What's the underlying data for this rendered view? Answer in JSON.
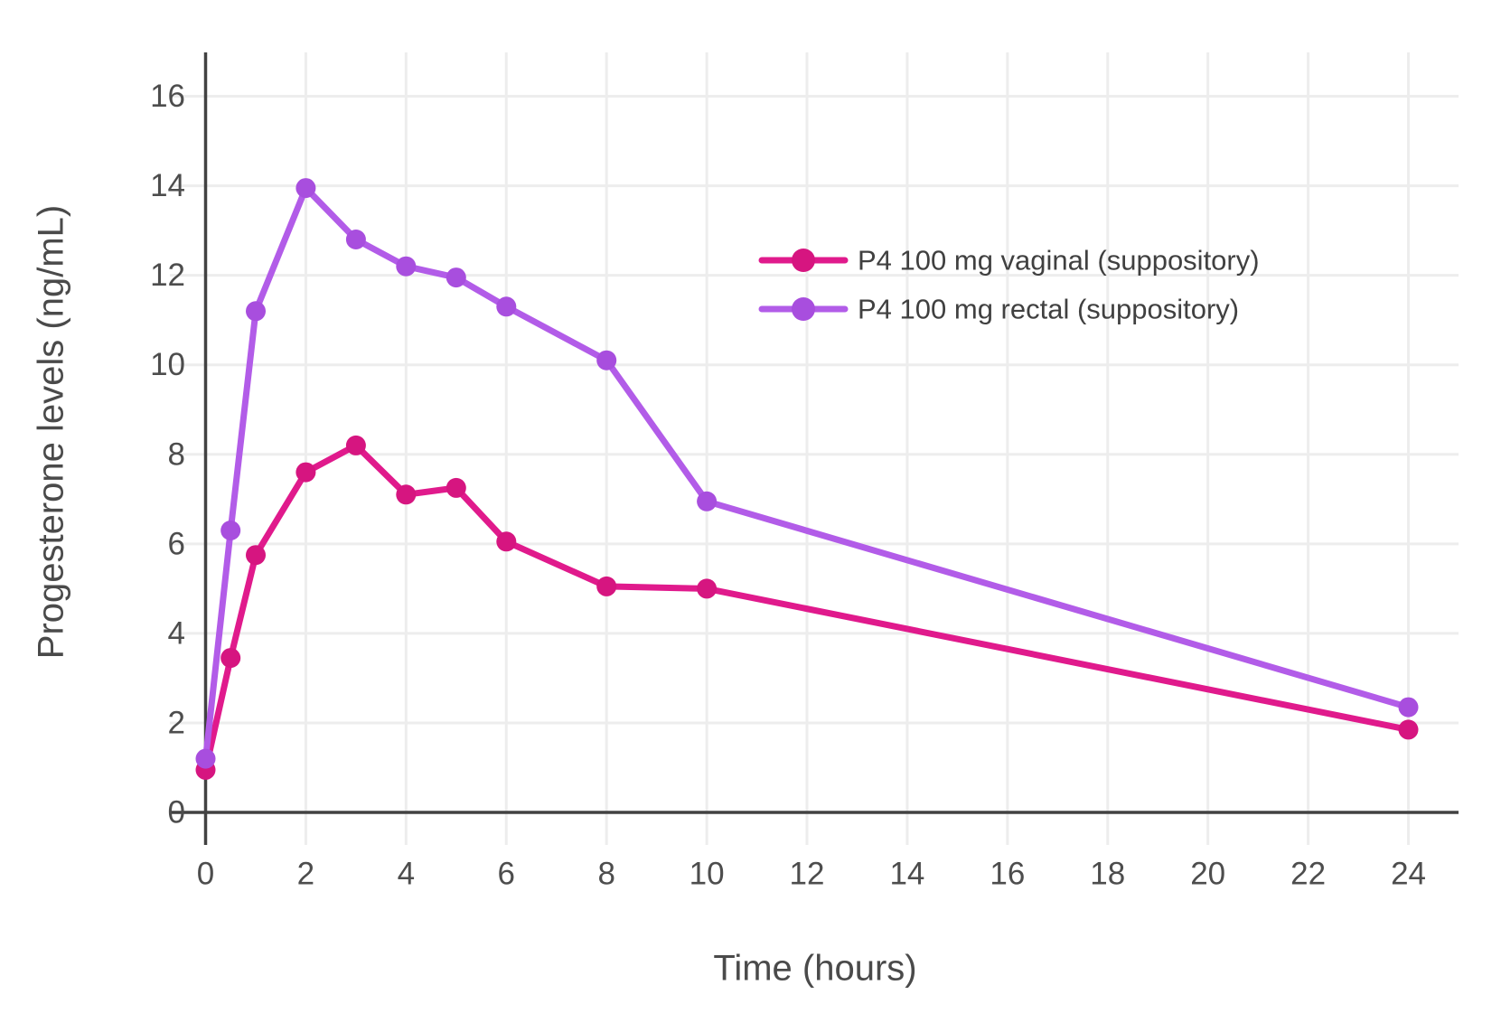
{
  "chart_data": {
    "type": "line",
    "title": "",
    "xlabel": "Time (hours)",
    "ylabel": "Progesterone levels (ng/mL)",
    "xlim": [
      0,
      25
    ],
    "ylim": [
      0,
      17
    ],
    "x_ticks": [
      0,
      2,
      4,
      6,
      8,
      10,
      12,
      14,
      16,
      18,
      20,
      22,
      24
    ],
    "y_ticks": [
      0,
      2,
      4,
      6,
      8,
      10,
      12,
      14,
      16
    ],
    "grid": true,
    "legend_position": "inside-upper-right",
    "x": [
      0,
      0.5,
      1,
      2,
      3,
      4,
      5,
      6,
      8,
      10,
      24
    ],
    "series": [
      {
        "name": "P4 100 mg vaginal (suppository)",
        "line_color": "#E01A8C",
        "marker_color": "#D61580",
        "values": [
          0.95,
          3.45,
          5.75,
          7.6,
          8.2,
          7.1,
          7.25,
          6.05,
          5.05,
          5.0,
          1.85
        ]
      },
      {
        "name": "P4 100 mg rectal (suppository)",
        "line_color": "#B25CE8",
        "marker_color": "#A84EDE",
        "values": [
          1.2,
          6.3,
          11.2,
          13.95,
          12.8,
          12.2,
          11.95,
          11.3,
          10.1,
          6.95,
          2.35
        ]
      }
    ],
    "style_colors": {
      "grid": "#EDEDED",
      "axis": "#424242",
      "tick_text": "#4d4d4d",
      "legend_text": "#404040"
    }
  }
}
